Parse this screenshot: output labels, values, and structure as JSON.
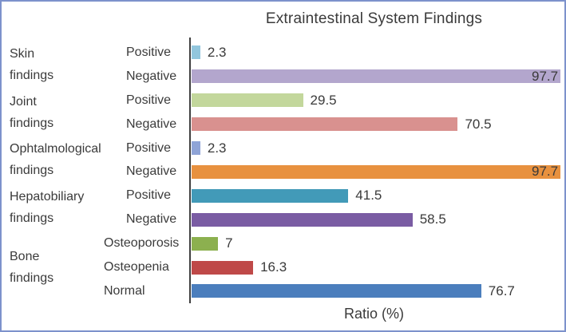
{
  "window": {
    "border_color": "#7d92cc",
    "background": "#ffffff"
  },
  "chart_data": {
    "type": "bar",
    "orientation": "horizontal",
    "title": "Extraintestinal System Findings",
    "xlabel": "Ratio (%)",
    "xlim": [
      0,
      100
    ],
    "unit": "%",
    "grid": false,
    "legend": false,
    "axis_color": "#404040",
    "text_color": "#3a3a3a",
    "groups": [
      {
        "label": "Skin findings",
        "label_lines": [
          "Skin",
          "findings"
        ],
        "rows": [
          {
            "category": "Positive",
            "value": 2.3,
            "value_label": "2.3",
            "color": "#92c6dd"
          },
          {
            "category": "Negative",
            "value": 97.7,
            "value_label": "97.7",
            "color": "#b3a6cd"
          }
        ]
      },
      {
        "label": "Joint findings",
        "label_lines": [
          "Joint",
          "findings"
        ],
        "rows": [
          {
            "category": "Positive",
            "value": 29.5,
            "value_label": "29.5",
            "color": "#c3d79c"
          },
          {
            "category": "Negative",
            "value": 70.5,
            "value_label": "70.5",
            "color": "#d9918f"
          }
        ]
      },
      {
        "label": "Ophtalmological findings",
        "label_lines": [
          "Ophtalmological",
          "findings"
        ],
        "rows": [
          {
            "category": "Positive",
            "value": 2.3,
            "value_label": "2.3",
            "color": "#8fa4d7"
          },
          {
            "category": "Negative",
            "value": 97.7,
            "value_label": "97.7",
            "color": "#e8913f"
          }
        ]
      },
      {
        "label": "Hepatobiliary findings",
        "label_lines": [
          "Hepatobiliary",
          "findings"
        ],
        "rows": [
          {
            "category": "Positive",
            "value": 41.5,
            "value_label": "41.5",
            "color": "#429ab8"
          },
          {
            "category": "Negative",
            "value": 58.5,
            "value_label": "58.5",
            "color": "#7a5ca3"
          }
        ]
      },
      {
        "label": "Bone findings",
        "label_lines": [
          "Bone",
          "findings"
        ],
        "rows": [
          {
            "category": "Osteoporosis",
            "value": 7,
            "value_label": "7",
            "color": "#8cb04f"
          },
          {
            "category": "Osteopenia",
            "value": 16.3,
            "value_label": "16.3",
            "color": "#bf4948"
          },
          {
            "category": "Normal",
            "value": 76.7,
            "value_label": "76.7",
            "color": "#4b7ebd"
          }
        ]
      }
    ]
  }
}
